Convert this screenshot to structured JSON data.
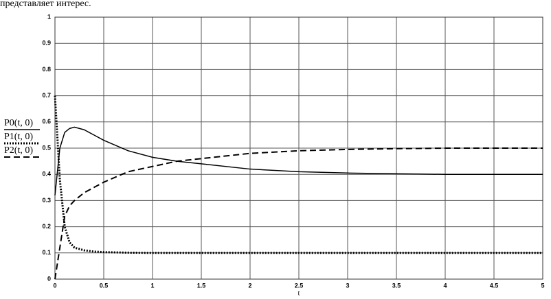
{
  "text": "представляет интерес.",
  "chart_data": {
    "type": "line",
    "x_label": "t",
    "x": [
      0,
      0.05,
      0.1,
      0.15,
      0.2,
      0.3,
      0.4,
      0.5,
      0.75,
      1,
      1.25,
      1.5,
      2,
      2.5,
      3,
      3.5,
      4,
      4.5,
      5
    ],
    "series": [
      {
        "name": "P0(t, 0)",
        "color": "#000000",
        "dash": "solid",
        "values": [
          0.32,
          0.5,
          0.56,
          0.575,
          0.58,
          0.57,
          0.55,
          0.53,
          0.49,
          0.465,
          0.45,
          0.44,
          0.42,
          0.41,
          0.405,
          0.402,
          0.4,
          0.4,
          0.4
        ]
      },
      {
        "name": "P1(t, 0)",
        "color": "#000000",
        "dash": "dotted",
        "values": [
          0.7,
          0.38,
          0.2,
          0.14,
          0.12,
          0.11,
          0.105,
          0.103,
          0.101,
          0.1,
          0.1,
          0.1,
          0.1,
          0.1,
          0.1,
          0.1,
          0.1,
          0.1,
          0.1
        ]
      },
      {
        "name": "P2(t, 0)",
        "color": "#000000",
        "dash": "dashed",
        "values": [
          0,
          0.12,
          0.24,
          0.28,
          0.3,
          0.33,
          0.35,
          0.37,
          0.41,
          0.43,
          0.45,
          0.46,
          0.48,
          0.49,
          0.495,
          0.498,
          0.5,
          0.5,
          0.5
        ]
      }
    ],
    "xlim": [
      0,
      5
    ],
    "xticks": [
      0,
      0.5,
      1,
      1.5,
      2,
      2.5,
      3,
      3.5,
      4,
      4.5,
      5
    ],
    "ylim": [
      0,
      1
    ],
    "yticks": [
      0,
      0.1,
      0.2,
      0.3,
      0.4,
      0.5,
      0.6,
      0.7,
      0.8,
      0.9,
      1
    ],
    "grid": true
  }
}
